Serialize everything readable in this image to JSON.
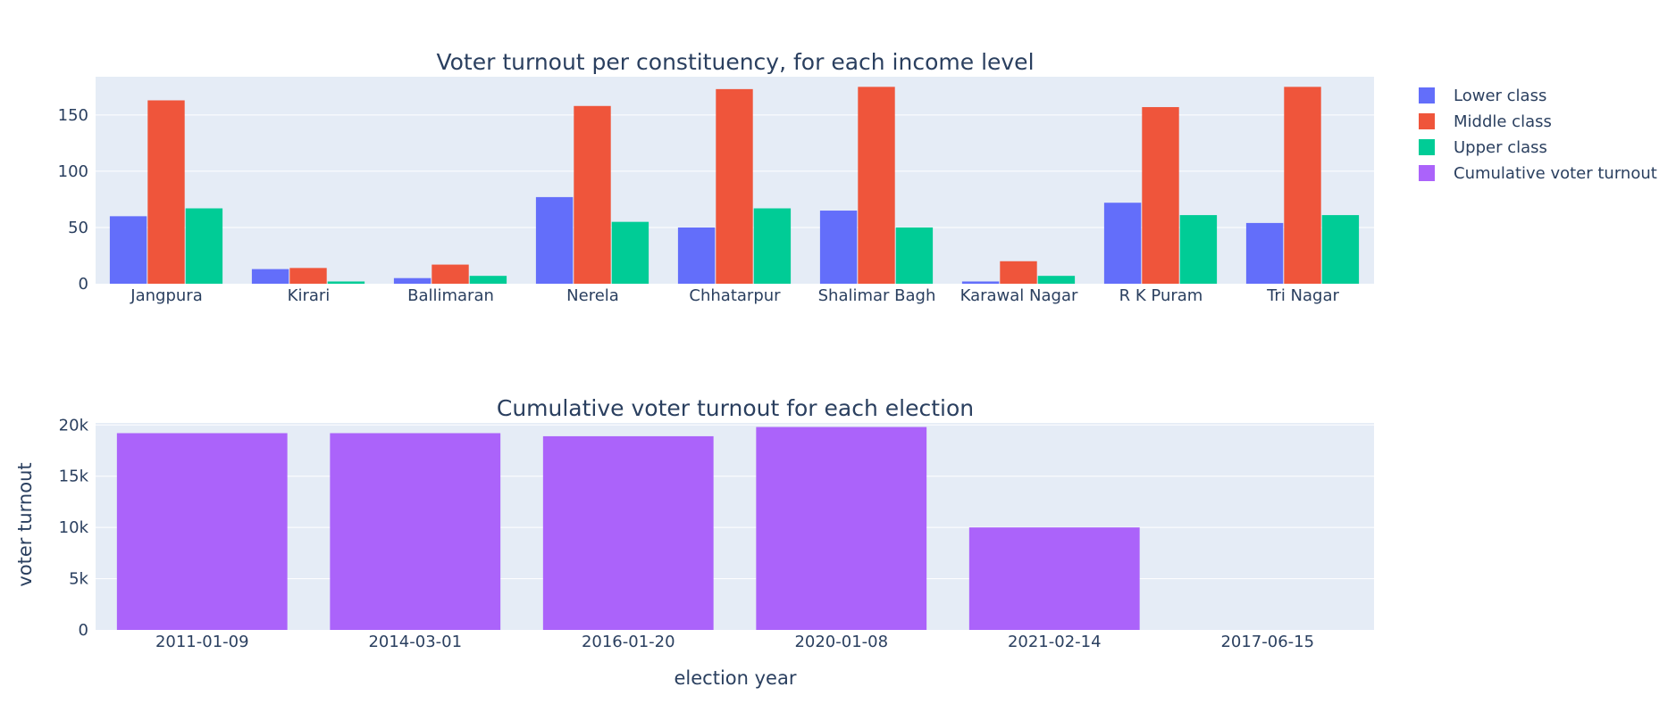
{
  "chart_data": [
    {
      "type": "bar",
      "title": "Voter turnout per constituency, for each income level",
      "xlabel": "",
      "ylabel": "",
      "categories": [
        "Jangpura",
        "Kirari",
        "Ballimaran",
        "Nerela",
        "Chhatarpur",
        "Shalimar Bagh",
        "Karawal Nagar",
        "R K Puram",
        "Tri Nagar"
      ],
      "series": [
        {
          "name": "Lower class",
          "color": "#636efa",
          "values": [
            60,
            13,
            5,
            77,
            50,
            65,
            2,
            72,
            54
          ]
        },
        {
          "name": "Middle class",
          "color": "#ef553b",
          "values": [
            163,
            14,
            17,
            158,
            173,
            175,
            20,
            157,
            175
          ]
        },
        {
          "name": "Upper class",
          "color": "#00cc96",
          "values": [
            67,
            2,
            7,
            55,
            67,
            50,
            7,
            61,
            61
          ]
        }
      ],
      "ylim": [
        0,
        184
      ],
      "yticks": [
        0,
        50,
        100,
        150
      ],
      "ytick_labels": [
        "0",
        "50",
        "100",
        "150"
      ],
      "grid": true,
      "barmode": "group"
    },
    {
      "type": "bar",
      "title": "Cumulative voter turnout for each election",
      "xlabel": "election year",
      "ylabel": "voter turnout",
      "categories": [
        "2011-01-09",
        "2014-03-01",
        "2016-01-20",
        "2020-01-08",
        "2021-02-14",
        "2017-06-15"
      ],
      "series": [
        {
          "name": "Cumulative voter turnout",
          "color": "#ab63fa",
          "values": [
            19200,
            19200,
            18900,
            19800,
            10000,
            0
          ]
        }
      ],
      "ylim": [
        0,
        20200
      ],
      "yticks": [
        0,
        5000,
        10000,
        15000,
        20000
      ],
      "ytick_labels": [
        "0",
        "5k",
        "10k",
        "15k",
        "20k"
      ],
      "grid": true
    }
  ],
  "legend": {
    "position": "top-right",
    "items": [
      {
        "name": "Lower class",
        "color": "#636efa"
      },
      {
        "name": "Middle class",
        "color": "#ef553b"
      },
      {
        "name": "Upper class",
        "color": "#00cc96"
      },
      {
        "name": "Cumulative voter turnout",
        "color": "#ab63fa"
      }
    ]
  }
}
